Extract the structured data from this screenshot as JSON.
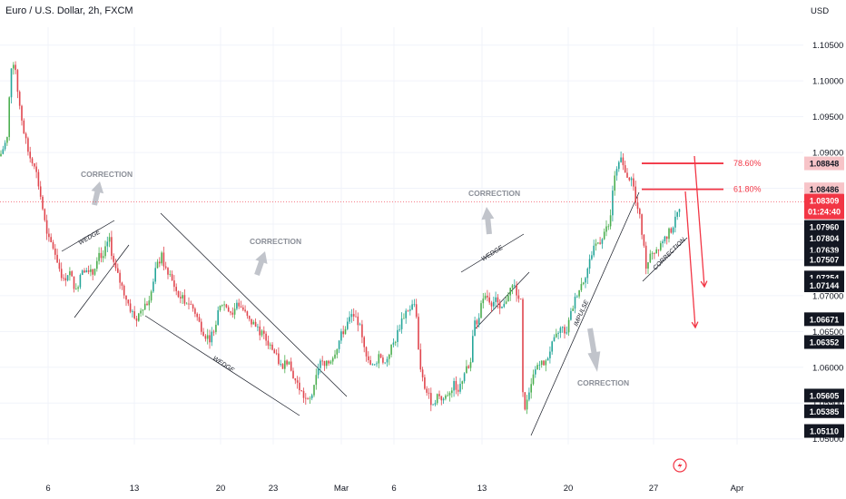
{
  "header": {
    "title": "Euro / U.S. Dollar, 2h, FXCM"
  },
  "colors": {
    "up": "#26a69a",
    "up_light": "#4caf50",
    "down": "#e0464e",
    "fib": "#f23645",
    "grid": "#f0f3fa",
    "ann": "#b2b5be"
  },
  "chart_data": {
    "type": "candlestick",
    "currency_label": "USD",
    "ylim": [
      1.0492,
      1.1075
    ],
    "y_ticks": [
      "1.10500",
      "1.10000",
      "1.09500",
      "1.09000",
      "1.08500",
      "1.08000",
      "1.07500",
      "1.07000",
      "1.06500",
      "1.06000",
      "1.05500",
      "1.05000"
    ],
    "x_ticks": [
      "6",
      "13",
      "20",
      "23",
      "Mar",
      "6",
      "13",
      "20",
      "27",
      "Apr"
    ],
    "path": [
      [
        0,
        1.0895
      ],
      [
        8,
        1.092
      ],
      [
        12,
        1.102
      ],
      [
        16,
        1.103
      ],
      [
        20,
        1.098
      ],
      [
        26,
        1.093
      ],
      [
        32,
        1.0895
      ],
      [
        38,
        1.0885
      ],
      [
        46,
        1.083
      ],
      [
        52,
        1.078
      ],
      [
        58,
        1.077
      ],
      [
        64,
        1.0745
      ],
      [
        70,
        1.072
      ],
      [
        76,
        1.0735
      ],
      [
        84,
        1.0705
      ],
      [
        90,
        1.074
      ],
      [
        96,
        1.0735
      ],
      [
        102,
        1.073
      ],
      [
        108,
        1.076
      ],
      [
        114,
        1.0755
      ],
      [
        120,
        1.078
      ],
      [
        126,
        1.074
      ],
      [
        132,
        1.072
      ],
      [
        138,
        1.07
      ],
      [
        144,
        1.068
      ],
      [
        150,
        1.0665
      ],
      [
        156,
        1.0685
      ],
      [
        162,
        1.069
      ],
      [
        168,
        1.071
      ],
      [
        172,
        1.074
      ],
      [
        178,
        1.0755
      ],
      [
        184,
        1.073
      ],
      [
        190,
        1.072
      ],
      [
        196,
        1.07
      ],
      [
        202,
        1.0695
      ],
      [
        208,
        1.069
      ],
      [
        214,
        1.068
      ],
      [
        220,
        1.066
      ],
      [
        226,
        1.0645
      ],
      [
        232,
        1.064
      ],
      [
        238,
        1.0665
      ],
      [
        244,
        1.069
      ],
      [
        250,
        1.0685
      ],
      [
        256,
        1.0675
      ],
      [
        262,
        1.069
      ],
      [
        268,
        1.068
      ],
      [
        274,
        1.0665
      ],
      [
        280,
        1.066
      ],
      [
        286,
        1.065
      ],
      [
        292,
        1.064
      ],
      [
        298,
        1.063
      ],
      [
        304,
        1.0615
      ],
      [
        310,
        1.06
      ],
      [
        316,
        1.061
      ],
      [
        322,
        1.059
      ],
      [
        328,
        1.0575
      ],
      [
        334,
        1.056
      ],
      [
        340,
        1.055
      ],
      [
        346,
        1.057
      ],
      [
        352,
        1.061
      ],
      [
        358,
        1.06
      ],
      [
        364,
        1.061
      ],
      [
        370,
        1.0625
      ],
      [
        376,
        1.0645
      ],
      [
        382,
        1.066
      ],
      [
        388,
        1.0675
      ],
      [
        394,
        1.0665
      ],
      [
        400,
        1.064
      ],
      [
        406,
        1.0605
      ],
      [
        412,
        1.06
      ],
      [
        418,
        1.062
      ],
      [
        424,
        1.0605
      ],
      [
        430,
        1.0625
      ],
      [
        436,
        1.064
      ],
      [
        442,
        1.0665
      ],
      [
        448,
        1.068
      ],
      [
        454,
        1.0685
      ],
      [
        458,
        1.069
      ],
      [
        462,
        1.06
      ],
      [
        466,
        1.058
      ],
      [
        470,
        1.0565
      ],
      [
        476,
        1.055
      ],
      [
        482,
        1.056
      ],
      [
        488,
        1.0555
      ],
      [
        494,
        1.0565
      ],
      [
        500,
        1.0575
      ],
      [
        506,
        1.057
      ],
      [
        512,
        1.0595
      ],
      [
        518,
        1.06
      ],
      [
        522,
        1.066
      ],
      [
        526,
        1.0665
      ],
      [
        530,
        1.0685
      ],
      [
        536,
        1.07
      ],
      [
        542,
        1.069
      ],
      [
        548,
        1.0695
      ],
      [
        554,
        1.068
      ],
      [
        560,
        1.0705
      ],
      [
        566,
        1.0715
      ],
      [
        570,
        1.07
      ],
      [
        574,
        1.069
      ],
      [
        576,
        1.056
      ],
      [
        578,
        1.0545
      ],
      [
        582,
        1.0555
      ],
      [
        588,
        1.059
      ],
      [
        594,
        1.061
      ],
      [
        600,
        1.06
      ],
      [
        606,
        1.0625
      ],
      [
        612,
        1.064
      ],
      [
        618,
        1.0655
      ],
      [
        624,
        1.065
      ],
      [
        630,
        1.068
      ],
      [
        636,
        1.0705
      ],
      [
        642,
        1.072
      ],
      [
        648,
        1.074
      ],
      [
        654,
        1.077
      ],
      [
        660,
        1.0775
      ],
      [
        666,
        1.079
      ],
      [
        672,
        1.08
      ],
      [
        676,
        1.0865
      ],
      [
        680,
        1.0875
      ],
      [
        684,
        1.089
      ],
      [
        688,
        1.088
      ],
      [
        692,
        1.0855
      ],
      [
        696,
        1.087
      ],
      [
        700,
        1.083
      ],
      [
        704,
        1.0815
      ],
      [
        708,
        1.078
      ],
      [
        712,
        1.074
      ],
      [
        716,
        1.0755
      ],
      [
        720,
        1.076
      ],
      [
        726,
        1.077
      ],
      [
        732,
        1.078
      ],
      [
        738,
        1.079
      ],
      [
        744,
        1.0805
      ],
      [
        750,
        1.0831
      ]
    ],
    "price_badges": [
      {
        "label": "1.08848",
        "value": 1.08848,
        "style": "fib_light"
      },
      {
        "label": "1.08486",
        "value": 1.08486,
        "style": "fib_light"
      },
      {
        "label": "1.07960",
        "value": 1.0796,
        "style": "dark"
      },
      {
        "label": "1.07804",
        "value": 1.07804,
        "style": "dark"
      },
      {
        "label": "1.07639",
        "value": 1.07639,
        "style": "dark"
      },
      {
        "label": "1.07507",
        "value": 1.07507,
        "style": "dark"
      },
      {
        "label": "1.07254",
        "value": 1.07254,
        "style": "dark"
      },
      {
        "label": "1.07144",
        "value": 1.07144,
        "style": "dark"
      },
      {
        "label": "1.06671",
        "value": 1.06671,
        "style": "dark"
      },
      {
        "label": "1.06352",
        "value": 1.06352,
        "style": "dark"
      },
      {
        "label": "1.05605",
        "value": 1.05605,
        "style": "dark"
      },
      {
        "label": "1.05385",
        "value": 1.05385,
        "style": "dark"
      },
      {
        "label": "1.05110",
        "value": 1.0511,
        "style": "dark"
      }
    ],
    "current_price": {
      "price": "1.08309",
      "countdown": "01:24:40",
      "value": 1.08309
    },
    "fib_levels": [
      {
        "label": "78.60%",
        "value": 1.08848
      },
      {
        "label": "61.80%",
        "value": 1.08486
      }
    ],
    "annotations": {
      "correction": "CORRECTION",
      "wedge": "WEDGE",
      "impulse": "IMPULSE"
    }
  }
}
